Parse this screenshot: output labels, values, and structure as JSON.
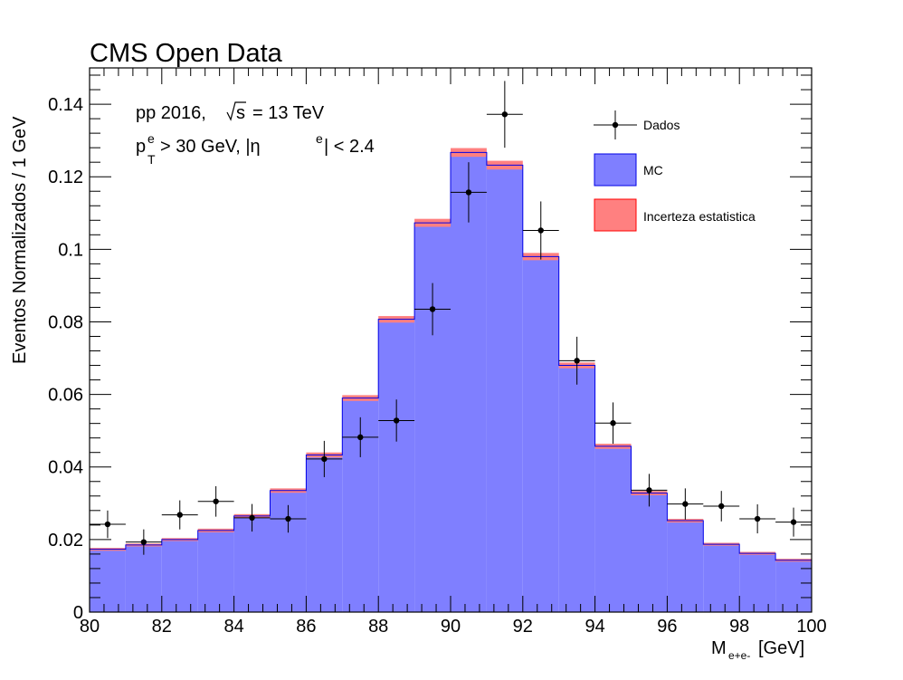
{
  "header": {
    "title": "CMS Open Data"
  },
  "annotations": {
    "line1_prefix": "pp 2016,",
    "line1_sqrt_var": "s",
    "line1_suffix": "= 13 TeV",
    "line2_p": "p",
    "line2_p_sup": "e",
    "line2_p_sub": "T",
    "line2_mid": "> 30 GeV, |η",
    "line2_eta_sup": "e",
    "line2_end": "| < 2.4"
  },
  "axes": {
    "ylabel": "Eventos Normalizados / 1 GeV",
    "xlabel_main": "M",
    "xlabel_sub": "e+e-",
    "xlabel_unit": "[GeV]"
  },
  "legend": {
    "data_label": "Dados",
    "mc_label": "MC",
    "unc_label": "Incerteza estatistica"
  },
  "colors": {
    "mc_fill": "#7f7fff",
    "mc_line": "#0000e6",
    "unc_fill": "#ff8080",
    "unc_line": "#ff0000",
    "data": "#000000"
  },
  "chart_data": {
    "type": "histogram",
    "xlim": [
      80,
      100
    ],
    "ylim": [
      0,
      0.15
    ],
    "x_ticks": [
      80,
      82,
      84,
      86,
      88,
      90,
      92,
      94,
      96,
      98,
      100
    ],
    "y_ticks": [
      0,
      0.02,
      0.04,
      0.06,
      0.08,
      0.1,
      0.12,
      0.14
    ],
    "y_tick_labels": [
      "0",
      "0.02",
      "0.04",
      "0.06",
      "0.08",
      "0.1",
      "0.12",
      "0.14"
    ],
    "bin_edges": [
      80,
      81,
      82,
      83,
      84,
      85,
      86,
      87,
      88,
      89,
      90,
      91,
      92,
      93,
      94,
      95,
      96,
      97,
      98,
      99,
      100
    ],
    "series": [
      {
        "name": "MC",
        "kind": "stepfill",
        "values": [
          0.0173,
          0.0185,
          0.02,
          0.0225,
          0.0265,
          0.0335,
          0.0433,
          0.059,
          0.0807,
          0.1073,
          0.1267,
          0.1232,
          0.098,
          0.068,
          0.0457,
          0.0328,
          0.0252,
          0.0187,
          0.0162,
          0.0143
        ],
        "stat_unc": [
          0.0004,
          0.0004,
          0.0004,
          0.0005,
          0.0005,
          0.0006,
          0.0007,
          0.0008,
          0.0009,
          0.0011,
          0.0012,
          0.0012,
          0.001,
          0.0008,
          0.0007,
          0.0006,
          0.0005,
          0.0004,
          0.0004,
          0.0004
        ]
      },
      {
        "name": "Dados",
        "kind": "points",
        "x": [
          80.5,
          81.5,
          82.5,
          83.5,
          84.5,
          85.5,
          86.5,
          87.5,
          88.5,
          89.5,
          90.5,
          91.5,
          92.5,
          93.5,
          94.5,
          95.5,
          96.5,
          97.5,
          98.5,
          99.5
        ],
        "values": [
          0.0242,
          0.0193,
          0.0268,
          0.0305,
          0.026,
          0.0257,
          0.0422,
          0.0482,
          0.0528,
          0.0835,
          0.1157,
          0.1372,
          0.1052,
          0.0693,
          0.0521,
          0.0336,
          0.0298,
          0.0292,
          0.0257,
          0.0248
        ],
        "yerr": [
          0.0038,
          0.0035,
          0.004,
          0.0042,
          0.0038,
          0.0038,
          0.005,
          0.0055,
          0.0058,
          0.0072,
          0.0083,
          0.0092,
          0.008,
          0.0066,
          0.0057,
          0.0045,
          0.0043,
          0.0042,
          0.004,
          0.004
        ],
        "xerr": 0.5
      }
    ]
  }
}
